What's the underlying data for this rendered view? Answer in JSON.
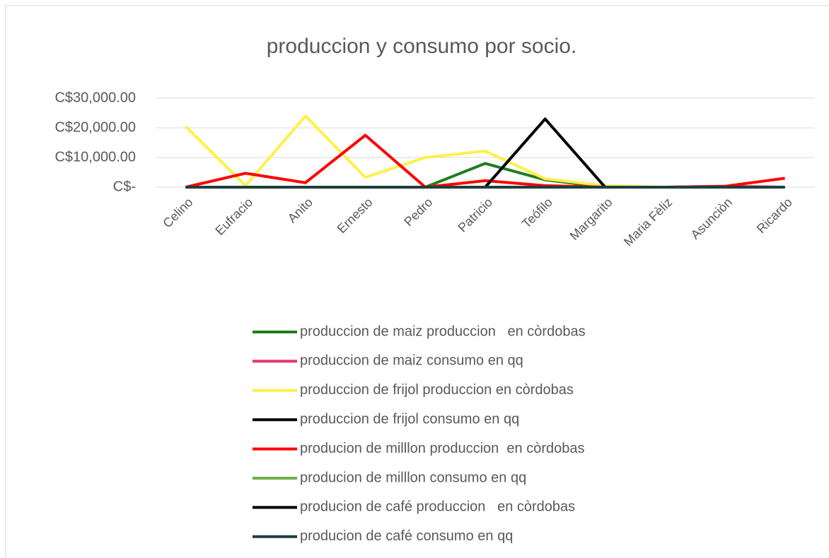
{
  "chart_data": {
    "type": "line",
    "title": "produccion y consumo  por socio.",
    "categories": [
      "Celino",
      "Eufracio",
      "Anito",
      "Ernesto",
      "Pedro",
      "Patricio",
      "Teófilo",
      "Margarito",
      "Maria Fèliz",
      "Asunciòn",
      "Ricardo"
    ],
    "ylim": [
      0,
      30000
    ],
    "yticks": [
      {
        "value": 0,
        "label": "C$-"
      },
      {
        "value": 10000,
        "label": "C$10,000.00"
      },
      {
        "value": 20000,
        "label": "C$20,000.00"
      },
      {
        "value": 30000,
        "label": "C$30,000.00"
      }
    ],
    "grid": true,
    "legend": "bottom",
    "series": [
      {
        "name": "produccion de maiz produccion   en còrdobas",
        "color": "#1e7e1e",
        "values": [
          0,
          0,
          0,
          0,
          0,
          8000,
          2500,
          0,
          0,
          0,
          0
        ]
      },
      {
        "name": "produccion de maiz consumo en qq",
        "color": "#e8336f",
        "values": [
          0,
          0,
          0,
          0,
          0,
          0,
          0,
          0,
          0,
          300,
          0
        ]
      },
      {
        "name": "produccion de frijol produccion en còrdobas",
        "color": "#fff04a",
        "values": [
          20500,
          500,
          24000,
          3300,
          10000,
          12200,
          2800,
          500,
          0,
          0,
          0
        ]
      },
      {
        "name": "produccion de frijol consumo en qq",
        "color": "#000000",
        "values": [
          0,
          0,
          0,
          0,
          0,
          0,
          0,
          0,
          0,
          0,
          0
        ]
      },
      {
        "name": "producion de milllon produccion  en còrdobas",
        "color": "#ff0000",
        "values": [
          0,
          4700,
          1500,
          17500,
          0,
          2200,
          500,
          0,
          0,
          300,
          3000
        ]
      },
      {
        "name": "producion de milllon consumo en qq",
        "color": "#70ad47",
        "values": [
          0,
          0,
          0,
          0,
          0,
          0,
          0,
          0,
          0,
          0,
          0
        ]
      },
      {
        "name": "producion de café produccion   en còrdobas",
        "color": "#000000",
        "values": [
          0,
          0,
          0,
          0,
          0,
          0,
          23000,
          0,
          0,
          0,
          0
        ]
      },
      {
        "name": "producion de café consumo en qq",
        "color": "#1f3f3f",
        "values": [
          0,
          0,
          0,
          0,
          0,
          0,
          0,
          0,
          0,
          0,
          0
        ]
      }
    ]
  }
}
